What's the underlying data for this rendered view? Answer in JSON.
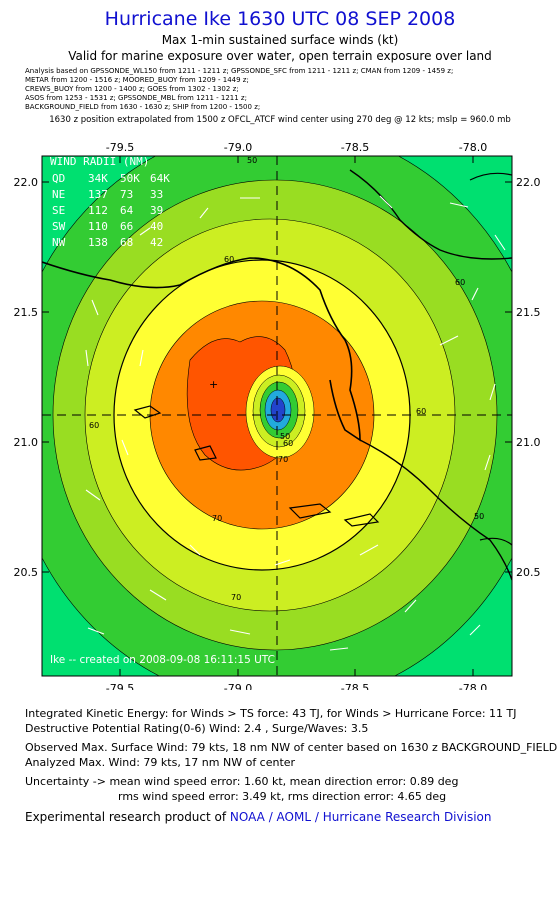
{
  "title": "Hurricane Ike 1630 UTC 08 SEP 2008",
  "subtitle": "Max 1-min sustained surface winds (kt)",
  "valid_note": "Valid for marine exposure over water, open terrain exposure over land",
  "sources": [
    "Analysis based on  GPSSONDE_WL150 from 1211 - 1211 z;  GPSSONDE_SFC from 1211 - 1211 z;  CMAN from 1209 - 1459 z;",
    "METAR from 1200 - 1516 z;  MOORED_BUOY from 1209 - 1449 z;",
    "CREWS_BUOY from 1200 - 1400 z;  GOES from 1302 - 1302 z;",
    "ASOS from 1253 - 1531 z;  GPSSONDE_MBL from 1211 - 1211 z;",
    "BACKGROUND_FIELD from 1630 - 1630 z;  SHIP from 1200 - 1500 z;"
  ],
  "position_note": "1630 z position extrapolated from 1500 z OFCL_ATCF wind center using 270 deg @ 12 kts; mslp = 960.0 mb",
  "map": {
    "x_ticks": [
      "-79.5",
      "-79.0",
      "-78.5",
      "-78.0"
    ],
    "y_ticks": [
      "22.0",
      "21.5",
      "21.0",
      "20.5"
    ],
    "contour_labels": [
      "60",
      "60",
      "60",
      "60",
      "70",
      "70",
      "70",
      "50",
      "50",
      "50",
      "60"
    ],
    "credit": "Ike -- created on 2008-09-08 16:11:15 UTC",
    "wind_radii": {
      "title": "WIND RADII (NM)",
      "header": [
        "QD",
        "34K",
        "50K",
        "64K"
      ],
      "rows": [
        [
          "NE",
          "137",
          "73",
          "33"
        ],
        [
          "SE",
          "112",
          "64",
          "39"
        ],
        [
          "SW",
          "110",
          "66",
          "40"
        ],
        [
          "NW",
          "138",
          "68",
          "42"
        ]
      ]
    },
    "colors": {
      "ring_outer": "#00e070",
      "ring_green": "#33cc33",
      "ring_lime": "#99dd22",
      "ring_yellowgreen": "#ccee22",
      "ring_yellow": "#ffff33",
      "ring_orange": "#ff8800",
      "ring_redorange": "#ff5500",
      "core": "#22aadd"
    }
  },
  "ike": {
    "line1": "Integrated Kinetic Energy:  for Winds > TS force: 43 TJ,  for Winds > Hurricane Force: 11 TJ",
    "line2": "Destructive Potential Rating(0-6)   Wind: 2.4 , Surge/Waves: 3.5"
  },
  "observed": {
    "line1": "Observed Max. Surface Wind: 79 kts, 18 nm NW of center based on 1630 z BACKGROUND_FIELD",
    "line2": "Analyzed Max. Wind: 79 kts, 17 nm NW of center"
  },
  "uncertainty": {
    "line1": "Uncertainty -> mean wind speed error: 1.60 kt,   mean direction error: 0.89 deg",
    "line2": "rms wind speed error: 3.49 kt,   rms direction error: 4.65 deg"
  },
  "credit_prefix": "Experimental research product of ",
  "credit_org": "NOAA / AOML / Hurricane Research Division"
}
